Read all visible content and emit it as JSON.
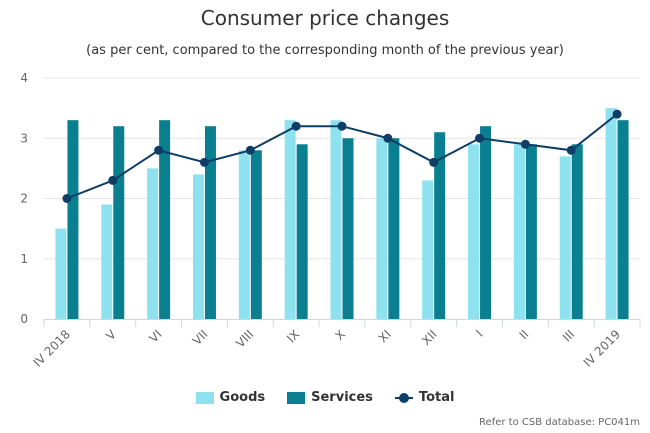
{
  "title": "Consumer price changes",
  "subtitle": "(as per cent, compared to the corresponding month of the previous year)",
  "credit": "Refer to CSB database: PC041m",
  "colors": {
    "goods": "#8ee2f0",
    "services": "#0a7f8f",
    "total": "#0e3d66",
    "grid": "#e6e6e6",
    "axis": "#ccd6eb"
  },
  "chart_data": {
    "type": "bar",
    "title": "Consumer price changes",
    "subtitle": "(as per cent, compared to the corresponding month of the previous year)",
    "categories": [
      "IV 2018",
      "V",
      "VI",
      "VII",
      "VIII",
      "IX",
      "X",
      "XI",
      "XII",
      "I",
      "II",
      "III",
      "IV 2019"
    ],
    "ylim": [
      0,
      4
    ],
    "yticks": [
      0,
      1,
      2,
      3,
      4
    ],
    "grid": true,
    "legend": "bottom",
    "series": [
      {
        "name": "Goods",
        "type": "bar",
        "values": [
          1.5,
          1.9,
          2.5,
          2.4,
          2.8,
          3.3,
          3.3,
          3.0,
          2.3,
          2.9,
          2.9,
          2.7,
          3.5
        ]
      },
      {
        "name": "Services",
        "type": "bar",
        "values": [
          3.3,
          3.2,
          3.3,
          3.2,
          2.8,
          2.9,
          3.0,
          3.0,
          3.1,
          3.2,
          2.9,
          2.9,
          3.3
        ]
      },
      {
        "name": "Total",
        "type": "line",
        "values": [
          2.0,
          2.3,
          2.8,
          2.6,
          2.8,
          3.2,
          3.2,
          3.0,
          2.6,
          3.0,
          2.9,
          2.8,
          3.4
        ]
      }
    ]
  }
}
